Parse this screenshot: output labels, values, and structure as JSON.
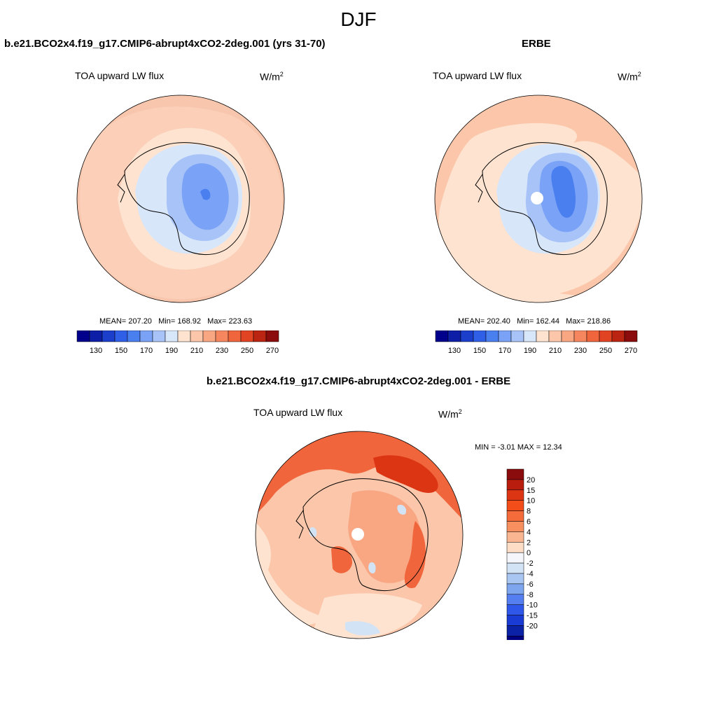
{
  "season": "DJF",
  "panels": {
    "model": {
      "title": "b.e21.BCO2x4.f19_g17.CMIP6-abrupt4xCO2-2deg.001 (yrs 31-70)",
      "variable": "TOA upward LW flux",
      "units_base": "W/m",
      "units_exp": "2",
      "stats": {
        "mean": "207.20",
        "min": "168.92",
        "max": "223.63"
      }
    },
    "obs": {
      "title": "ERBE",
      "variable": "TOA upward LW flux",
      "units_base": "W/m",
      "units_exp": "2",
      "stats": {
        "mean": "202.40",
        "min": "162.44",
        "max": "218.86"
      }
    },
    "diff": {
      "title": "b.e21.BCO2x4.f19_g17.CMIP6-abrupt4xCO2-2deg.001 - ERBE",
      "variable": "TOA upward LW flux",
      "units_base": "W/m",
      "units_exp": "2",
      "stats": {
        "min": "-3.01",
        "max": "12.34"
      }
    }
  },
  "labels": {
    "mean": "MEAN=",
    "min": "Min=",
    "max": "Max=",
    "diff_min": "MIN =",
    "diff_max": "MAX ="
  },
  "abs_colorbar": {
    "ticks": [
      "130",
      "150",
      "170",
      "190",
      "210",
      "230",
      "250",
      "270"
    ],
    "colors": [
      "#00008c",
      "#0d1fa6",
      "#1c3fcb",
      "#2f5fe6",
      "#4a7ff0",
      "#7aa2f6",
      "#a7c3f8",
      "#d8e6fa",
      "#fde3d0",
      "#fbc6a9",
      "#f9a683",
      "#f6865e",
      "#f0653b",
      "#e04422",
      "#bb2411",
      "#8a0c0c"
    ]
  },
  "diff_colorbar": {
    "levels": [
      "20",
      "15",
      "10",
      "8",
      "6",
      "4",
      "2",
      "0",
      "-2",
      "-4",
      "-6",
      "-8",
      "-10",
      "-15",
      "-20"
    ],
    "colors": [
      "#8a0c0c",
      "#b81d0e",
      "#dc3514",
      "#f34e1a",
      "#f66b3a",
      "#f88f5f",
      "#fab691",
      "#fdddc6",
      "#f4f6fb",
      "#d3e3f6",
      "#a9c6f3",
      "#7ea6ef",
      "#557ff0",
      "#2f58ea",
      "#1a3cd4",
      "#0b22a6",
      "#000080"
    ]
  },
  "map_colors": {
    "coast": "#000000",
    "model_ocean": "#f8c5ad",
    "model_outer": "#fbcfb8",
    "model_band": "#fde3d0",
    "model_ice1": "#d8e6fa",
    "model_ice2": "#a7c3f8",
    "model_ice3": "#7aa2f6",
    "model_ice4": "#4a7ff0",
    "obs_ocean": "#fde3d0",
    "obs_outer": "#fbc6a9",
    "diff_base": "#fbc6a9",
    "diff_light": "#fde3d0",
    "diff_mid": "#f9a683",
    "diff_strong": "#f0653b",
    "diff_red": "#dc3514",
    "diff_blue": "#d3e3f6"
  }
}
